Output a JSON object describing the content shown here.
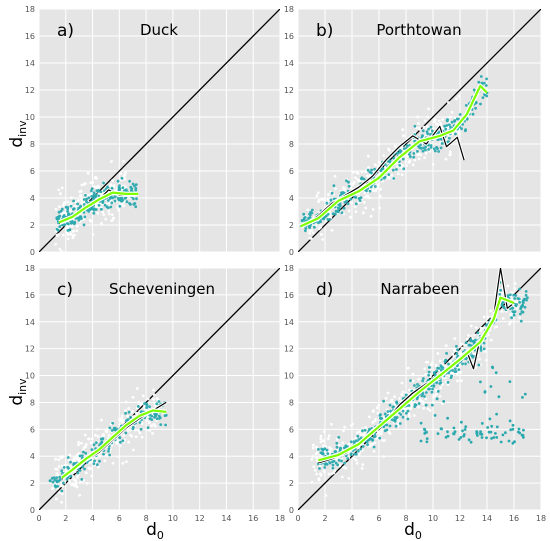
{
  "figure": {
    "ylabel_main": "d",
    "ylabel_sub": "inv",
    "xlabel_main": "d",
    "xlabel_sub": "0"
  },
  "chart_data": [
    {
      "type": "scatter",
      "letter": "a)",
      "title": "Duck",
      "xlim": [
        0,
        18
      ],
      "ylim": [
        0,
        18
      ],
      "xticks": [
        "0",
        "2",
        "4",
        "6",
        "8",
        "10",
        "12",
        "14",
        "16",
        "18"
      ],
      "yticks": [
        "0",
        "2",
        "4",
        "6",
        "8",
        "10",
        "12",
        "14",
        "16",
        "18"
      ],
      "grid": true,
      "series": [
        {
          "role": "white-points",
          "color": "#ffffff",
          "x_range": [
            1.2,
            6.5
          ],
          "count": 230
        },
        {
          "role": "teal-points",
          "color": "#2aa9ae",
          "x_range": [
            1.3,
            7.4
          ],
          "count": 240
        },
        {
          "role": "black-line",
          "color": "#000000",
          "x": [
            1.5,
            2.5,
            3.5,
            4.5,
            5.2,
            6.0,
            7.2
          ],
          "y": [
            2.1,
            2.5,
            3.3,
            3.9,
            4.6,
            4.2,
            4.2
          ]
        },
        {
          "role": "green-line",
          "color": "#7fff00",
          "x": [
            1.5,
            2.5,
            3.5,
            4.5,
            5.5,
            6.5,
            7.4
          ],
          "y": [
            2.2,
            2.6,
            3.3,
            3.9,
            4.4,
            4.3,
            4.3
          ]
        }
      ]
    },
    {
      "type": "scatter",
      "letter": "b)",
      "title": "Porthtowan",
      "xlim": [
        0,
        18
      ],
      "ylim": [
        0,
        18
      ],
      "xticks": [
        "0",
        "2",
        "4",
        "6",
        "8",
        "10",
        "12",
        "14",
        "16",
        "18"
      ],
      "yticks": [
        "0",
        "2",
        "4",
        "6",
        "8",
        "10",
        "12",
        "14",
        "16",
        "18"
      ],
      "grid": true,
      "series": [
        {
          "role": "white-points",
          "color": "#ffffff",
          "x_range": [
            0.5,
            12.0
          ],
          "count": 320
        },
        {
          "role": "teal-points",
          "color": "#2aa9ae",
          "x_range": [
            0.2,
            14.0
          ],
          "count": 380
        },
        {
          "role": "black-line",
          "color": "#000000",
          "x": [
            0.5,
            1.5,
            2.5,
            3.5,
            4.5,
            5.5,
            6.5,
            7.5,
            8.5,
            9.5,
            10.5,
            11.0,
            11.8,
            12.3
          ],
          "y": [
            2.0,
            2.7,
            3.6,
            4.2,
            4.8,
            5.6,
            6.8,
            7.8,
            8.6,
            8.0,
            9.3,
            7.8,
            8.5,
            6.8
          ]
        },
        {
          "role": "green-line",
          "color": "#7fff00",
          "x": [
            0.2,
            1.5,
            3.0,
            4.5,
            6.0,
            7.5,
            9.0,
            10.5,
            11.5,
            12.5,
            13.5,
            14.0
          ],
          "y": [
            1.9,
            2.5,
            3.8,
            4.5,
            5.5,
            7.0,
            8.2,
            8.6,
            9.0,
            10.2,
            12.3,
            11.8
          ]
        }
      ]
    },
    {
      "type": "scatter",
      "letter": "c)",
      "title": "Scheveningen",
      "xlim": [
        0,
        18
      ],
      "ylim": [
        0,
        18
      ],
      "xticks": [
        "0",
        "2",
        "4",
        "6",
        "8",
        "10",
        "12",
        "14",
        "16",
        "18"
      ],
      "yticks": [
        "0",
        "2",
        "4",
        "6",
        "8",
        "10",
        "12",
        "14",
        "16",
        "18"
      ],
      "grid": true,
      "series": [
        {
          "role": "white-points",
          "color": "#ffffff",
          "x_range": [
            1.0,
            9.0
          ],
          "count": 260
        },
        {
          "role": "teal-points",
          "color": "#2aa9ae",
          "x_range": [
            0.8,
            9.5
          ],
          "count": 220
        },
        {
          "role": "black-line",
          "color": "#000000",
          "x": [
            1.7,
            2.5,
            3.5,
            4.5,
            5.5,
            6.5,
            7.5,
            8.5,
            9.5
          ],
          "y": [
            2.3,
            2.9,
            3.7,
            4.3,
            5.2,
            6.1,
            6.8,
            7.4,
            8.0
          ]
        },
        {
          "role": "green-line",
          "color": "#7fff00",
          "x": [
            1.7,
            2.5,
            3.5,
            4.5,
            5.5,
            6.5,
            7.5,
            8.5,
            9.5
          ],
          "y": [
            2.4,
            3.0,
            3.8,
            4.5,
            5.4,
            6.3,
            7.0,
            7.4,
            7.3
          ]
        }
      ]
    },
    {
      "type": "scatter",
      "letter": "d)",
      "title": "Narrabeen",
      "xlim": [
        0,
        18
      ],
      "ylim": [
        0,
        18
      ],
      "xticks": [
        "0",
        "2",
        "4",
        "6",
        "8",
        "10",
        "12",
        "14",
        "16",
        "18"
      ],
      "yticks": [
        "0",
        "2",
        "4",
        "6",
        "8",
        "10",
        "12",
        "14",
        "16",
        "18"
      ],
      "grid": true,
      "series": [
        {
          "role": "white-points",
          "color": "#ffffff",
          "x_range": [
            1.0,
            16.5
          ],
          "count": 480
        },
        {
          "role": "teal-points",
          "color": "#2aa9ae",
          "x_range": [
            1.5,
            17.0
          ],
          "count": 520
        },
        {
          "role": "black-line",
          "color": "#000000",
          "x": [
            1.5,
            2.5,
            3.5,
            4.5,
            5.5,
            6.5,
            7.5,
            8.5,
            9.5,
            10.5,
            11.5,
            12.5,
            13.0,
            13.5,
            14.0,
            14.5,
            15.0,
            15.5,
            16.0
          ],
          "y": [
            3.5,
            3.8,
            4.2,
            4.9,
            5.9,
            6.6,
            7.8,
            8.7,
            9.4,
            9.8,
            10.9,
            11.8,
            10.5,
            12.8,
            13.2,
            14.5,
            18.0,
            15.0,
            15.4
          ]
        },
        {
          "role": "green-line",
          "color": "#7fff00",
          "x": [
            1.5,
            3.0,
            4.5,
            6.0,
            7.5,
            9.0,
            10.5,
            12.0,
            13.5,
            14.5,
            15.0,
            16.0
          ],
          "y": [
            3.7,
            4.1,
            4.9,
            6.2,
            7.5,
            8.8,
            10.0,
            11.2,
            12.5,
            14.2,
            15.8,
            15.4
          ]
        }
      ]
    }
  ]
}
